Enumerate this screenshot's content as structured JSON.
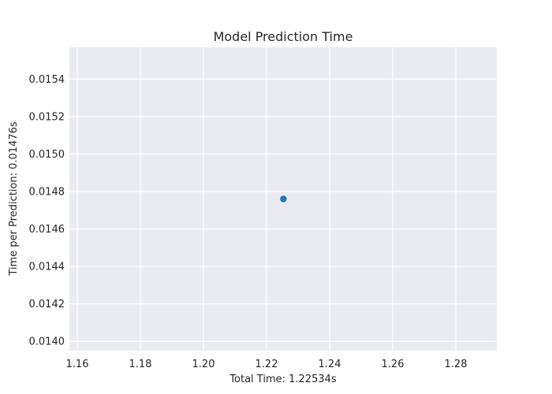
{
  "chart_data": {
    "type": "scatter",
    "title": "Model Prediction Time",
    "xlabel": "Total Time: 1.22534s",
    "ylabel": "Time per Prediction: 0.01476s",
    "xlim": [
      1.1575,
      1.293
    ],
    "ylim": [
      0.01395,
      0.01557
    ],
    "x_ticks": [
      1.16,
      1.18,
      1.2,
      1.22,
      1.24,
      1.26,
      1.28
    ],
    "x_tick_labels": [
      "1.16",
      "1.18",
      "1.20",
      "1.22",
      "1.24",
      "1.26",
      "1.28"
    ],
    "y_ticks": [
      0.014,
      0.0142,
      0.0144,
      0.0146,
      0.0148,
      0.015,
      0.0152,
      0.0154
    ],
    "y_tick_labels": [
      "0.0140",
      "0.0142",
      "0.0144",
      "0.0146",
      "0.0148",
      "0.0150",
      "0.0152",
      "0.0154"
    ],
    "grid": true,
    "series": [
      {
        "x": [
          1.22534
        ],
        "y": [
          0.01476
        ],
        "color": "#1f77b4"
      }
    ],
    "background_color": "#eaeaf2"
  }
}
